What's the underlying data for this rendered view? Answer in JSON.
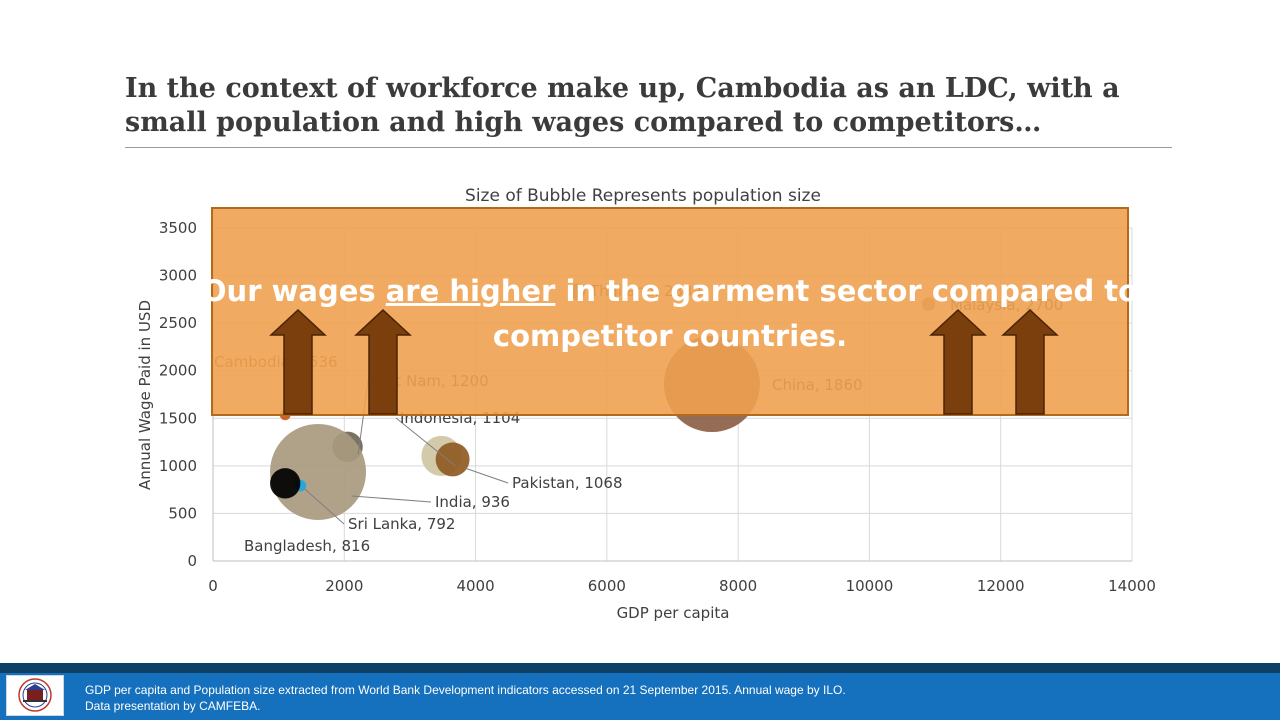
{
  "slide": {
    "title_line1": "In the context of workforce make up, Cambodia as an LDC, with a",
    "title_line2": "small population and high wages compared to competitors…"
  },
  "callout": {
    "text_before": "Our wages ",
    "text_emphasis": "are higher",
    "text_after": " in the garment sector compared to",
    "text_line2": "competitor countries.",
    "fill_color": "#eea151",
    "border_color": "#b56a1b",
    "arrow_color": "#7a3f0d",
    "arrow_count": 4
  },
  "footer": {
    "line1": "GDP per capita and Population size extracted from World Bank Development indicators accessed on 21 September 2015.  Annual wage by ILO.",
    "line2": "Data presentation by CAMFEBA.",
    "bar_color": "#1570bd",
    "logo_icon": "camfeba-logo-icon"
  },
  "chart_data": {
    "type": "scatter",
    "subtype": "bubble",
    "title": "Size of Bubble Represents population size",
    "xlabel": "GDP per capita",
    "ylabel": "Annual Wage Paid in USD",
    "xlim": [
      0,
      14000
    ],
    "ylim": [
      0,
      3500
    ],
    "xticks": [
      0,
      2000,
      4000,
      6000,
      8000,
      10000,
      12000,
      14000
    ],
    "yticks": [
      0,
      500,
      1000,
      1500,
      2000,
      2500,
      3000,
      3500
    ],
    "grid": true,
    "legend": "none",
    "points": [
      {
        "label": "Cambodia, 1536",
        "x": 1100,
        "y": 1536,
        "size": 0.5,
        "color": "#c55a11"
      },
      {
        "label": "Viet Nam, 1200",
        "x": 2050,
        "y": 1200,
        "size": 4,
        "color": "#6e6757"
      },
      {
        "label": "Indonesia, 1104",
        "x": 3480,
        "y": 1104,
        "size": 7,
        "color": "#cfc6a5"
      },
      {
        "label": "Pakistan, 1068",
        "x": 3650,
        "y": 1068,
        "size": 5,
        "color": "#8f5a22"
      },
      {
        "label": "India, 936",
        "x": 1600,
        "y": 936,
        "size": 40,
        "color": "#a99a7e"
      },
      {
        "label": "Sri Lanka, 792",
        "x": 1330,
        "y": 792,
        "size": 0.6,
        "color": "#1ea7e0"
      },
      {
        "label": "Bangladesh, 816",
        "x": 1100,
        "y": 816,
        "size": 4,
        "color": "#000000"
      },
      {
        "label": "Thailand, 2832",
        "x": 5550,
        "y": 2832,
        "size": 1.2,
        "color": "#8f6d4a"
      },
      {
        "label": "China, 1860",
        "x": 7600,
        "y": 1860,
        "size": 40,
        "color": "#8c5f46"
      },
      {
        "label": "Malaysia, 2700",
        "x": 10900,
        "y": 2700,
        "size": 0.8,
        "color": "#b08a64"
      }
    ]
  }
}
